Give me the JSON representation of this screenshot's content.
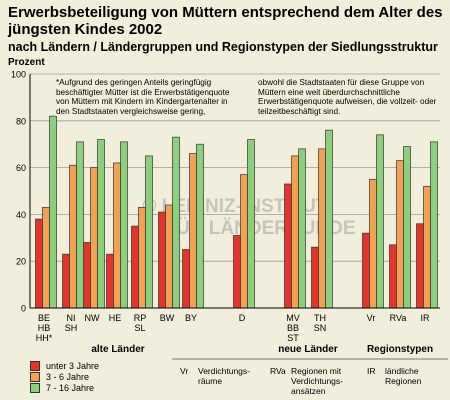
{
  "title": "Erwerbsbeteiligung von Müttern entsprechend dem Alter des jüngsten Kindes  2002",
  "subtitle": "nach Ländern / Ländergruppen und Regionstypen der Siedlungsstruktur",
  "unit": "Prozent",
  "note_left": "*Aufgrund des geringen Anteils geringfügig beschäftigter Mütter ist die Erwerbstätigenquote von Müttern mit Kindern im Kindergartenalter in den Stadtstaaten vergleichsweise gering,",
  "note_right": "obwohl    die Stadtstaaten für diese Gruppe von Müttern eine weit überdurchschnittliche Erwerbstätigenquote aufweisen, die vollzeit- oder teilzeitbeschäftigt sind.",
  "watermark": "© LEIBNIZ-INSTITUT FÜR LÄNDERKUNDE",
  "group_labels": {
    "alte": "alte Länder",
    "neue": "neue Länder",
    "region": "Regionstypen"
  },
  "legend": [
    {
      "label": "unter 3 Jahre",
      "color": "#e4342c"
    },
    {
      "label": "3 - 6 Jahre",
      "color": "#f2a155"
    },
    {
      "label": "7 - 16 Jahre",
      "color": "#8ccf7c"
    }
  ],
  "abbreviations": {
    "vr_key": "Vr",
    "vr_text": "Verdichtungs-\nräume",
    "rva_key": "RVa",
    "rva_text": "Regionen mit\nVerdichtungs-\nansätzen",
    "ir_key": "IR",
    "ir_text": "ländliche\nRegionen"
  },
  "chart_data": {
    "type": "bar",
    "categories": [
      "BE HB HH*",
      "NI SH",
      "NW",
      "HE",
      "RP SL",
      "BW",
      "BY",
      "D",
      "MV BB ST",
      "TH SN",
      "Vr",
      "RVa",
      "IR"
    ],
    "category_lines": [
      [
        "BE",
        "HB",
        "HH*"
      ],
      [
        "NI",
        "SH"
      ],
      [
        "NW"
      ],
      [
        "HE"
      ],
      [
        "RP",
        "SL"
      ],
      [
        "BW"
      ],
      [
        "BY"
      ],
      [
        "D"
      ],
      [
        "MV",
        "BB",
        "ST"
      ],
      [
        "TH",
        "SN"
      ],
      [
        "Vr"
      ],
      [
        "RVa"
      ],
      [
        "IR"
      ]
    ],
    "series": [
      {
        "name": "unter 3 Jahre",
        "values": [
          38,
          23,
          28,
          23,
          35,
          41,
          25,
          31,
          53,
          26,
          32,
          27,
          36
        ]
      },
      {
        "name": "3 - 6 Jahre",
        "values": [
          43,
          61,
          60,
          62,
          43,
          44,
          66,
          57,
          65,
          68,
          55,
          63,
          52
        ]
      },
      {
        "name": "7 - 16 Jahre",
        "values": [
          82,
          71,
          72,
          71,
          65,
          73,
          70,
          72,
          68,
          76,
          74,
          69,
          71
        ]
      }
    ],
    "colors": [
      "#e4342c",
      "#f2a155",
      "#8ccf7c"
    ],
    "ylim": [
      0,
      100
    ],
    "yticks": [
      0,
      20,
      40,
      60,
      80,
      100
    ],
    "grid": true
  }
}
